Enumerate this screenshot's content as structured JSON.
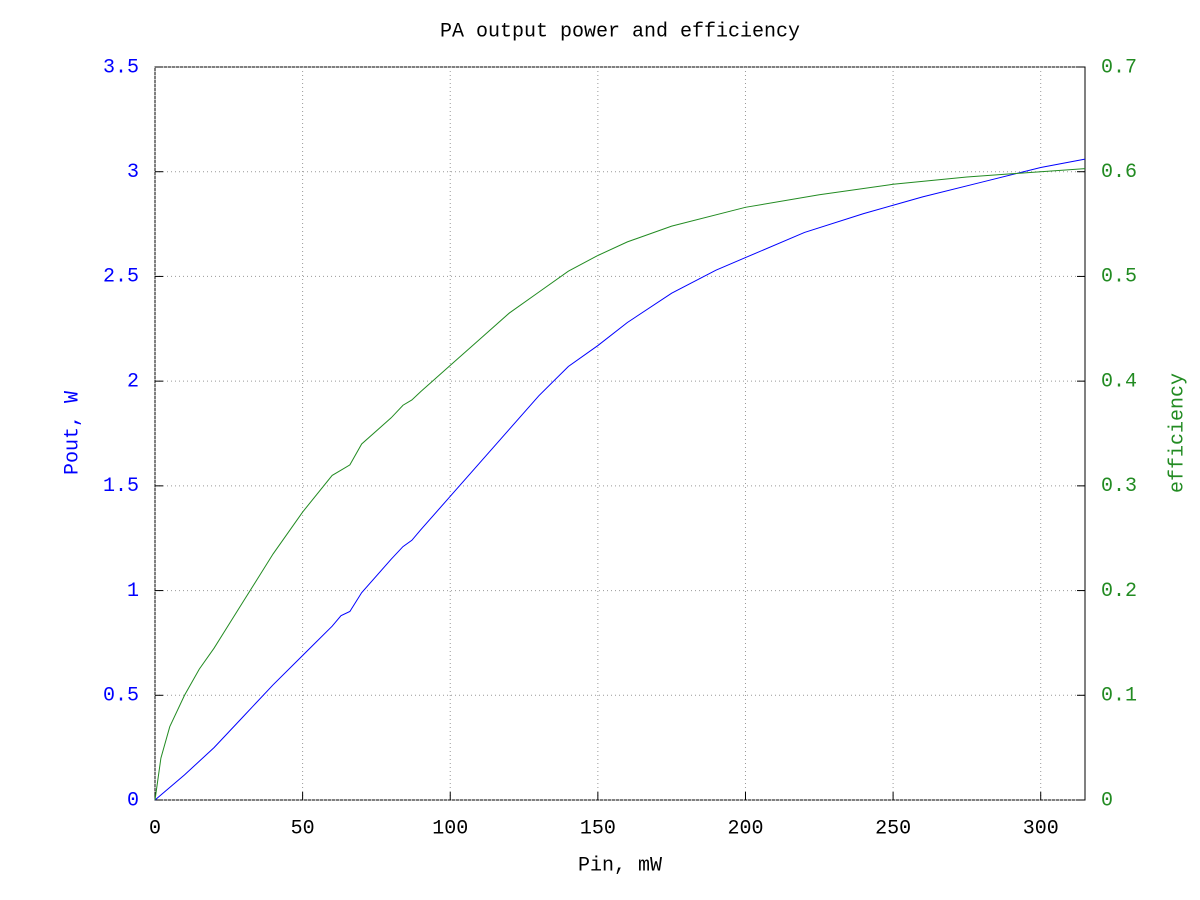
{
  "chart_data": {
    "type": "line",
    "title": "PA output power and efficiency",
    "x_label": "Pin, mW",
    "y_label": "Pout, W",
    "y2_label": "efficiency",
    "xlim": [
      0,
      315
    ],
    "xticks": [
      0,
      50,
      100,
      150,
      200,
      250,
      300
    ],
    "ylim": [
      0,
      3.5
    ],
    "yticks": [
      0,
      0.5,
      1,
      1.5,
      2,
      2.5,
      3,
      3.5
    ],
    "y2lim": [
      0,
      0.7
    ],
    "y2ticks": [
      0,
      0.1,
      0.2,
      0.3,
      0.4,
      0.5,
      0.6,
      0.7
    ],
    "grid": true,
    "series": [
      {
        "color": "#0000ff",
        "x": [
          0,
          10,
          20,
          30,
          40,
          50,
          60,
          63,
          66,
          70,
          80,
          84,
          87,
          90,
          100,
          110,
          120,
          130,
          140,
          150,
          160,
          175,
          190,
          200,
          220,
          240,
          250,
          260,
          280,
          300,
          315
        ],
        "values": [
          0,
          0.12,
          0.25,
          0.4,
          0.55,
          0.69,
          0.83,
          0.88,
          0.9,
          0.99,
          1.15,
          1.21,
          1.24,
          1.29,
          1.45,
          1.61,
          1.77,
          1.93,
          2.07,
          2.17,
          2.28,
          2.42,
          2.53,
          2.59,
          2.71,
          2.8,
          2.84,
          2.88,
          2.95,
          3.02,
          3.06
        ]
      },
      {
        "color": "#228b22",
        "axis": "y2",
        "x": [
          0,
          2,
          5,
          10,
          15,
          20,
          30,
          40,
          50,
          60,
          63,
          66,
          70,
          80,
          84,
          87,
          90,
          100,
          110,
          120,
          130,
          140,
          150,
          160,
          175,
          200,
          225,
          250,
          275,
          300,
          315
        ],
        "values": [
          0,
          0.04,
          0.07,
          0.1,
          0.125,
          0.145,
          0.19,
          0.235,
          0.275,
          0.31,
          0.315,
          0.32,
          0.34,
          0.365,
          0.377,
          0.382,
          0.39,
          0.415,
          0.44,
          0.465,
          0.485,
          0.505,
          0.52,
          0.533,
          0.548,
          0.566,
          0.578,
          0.588,
          0.595,
          0.6,
          0.603
        ]
      }
    ]
  }
}
